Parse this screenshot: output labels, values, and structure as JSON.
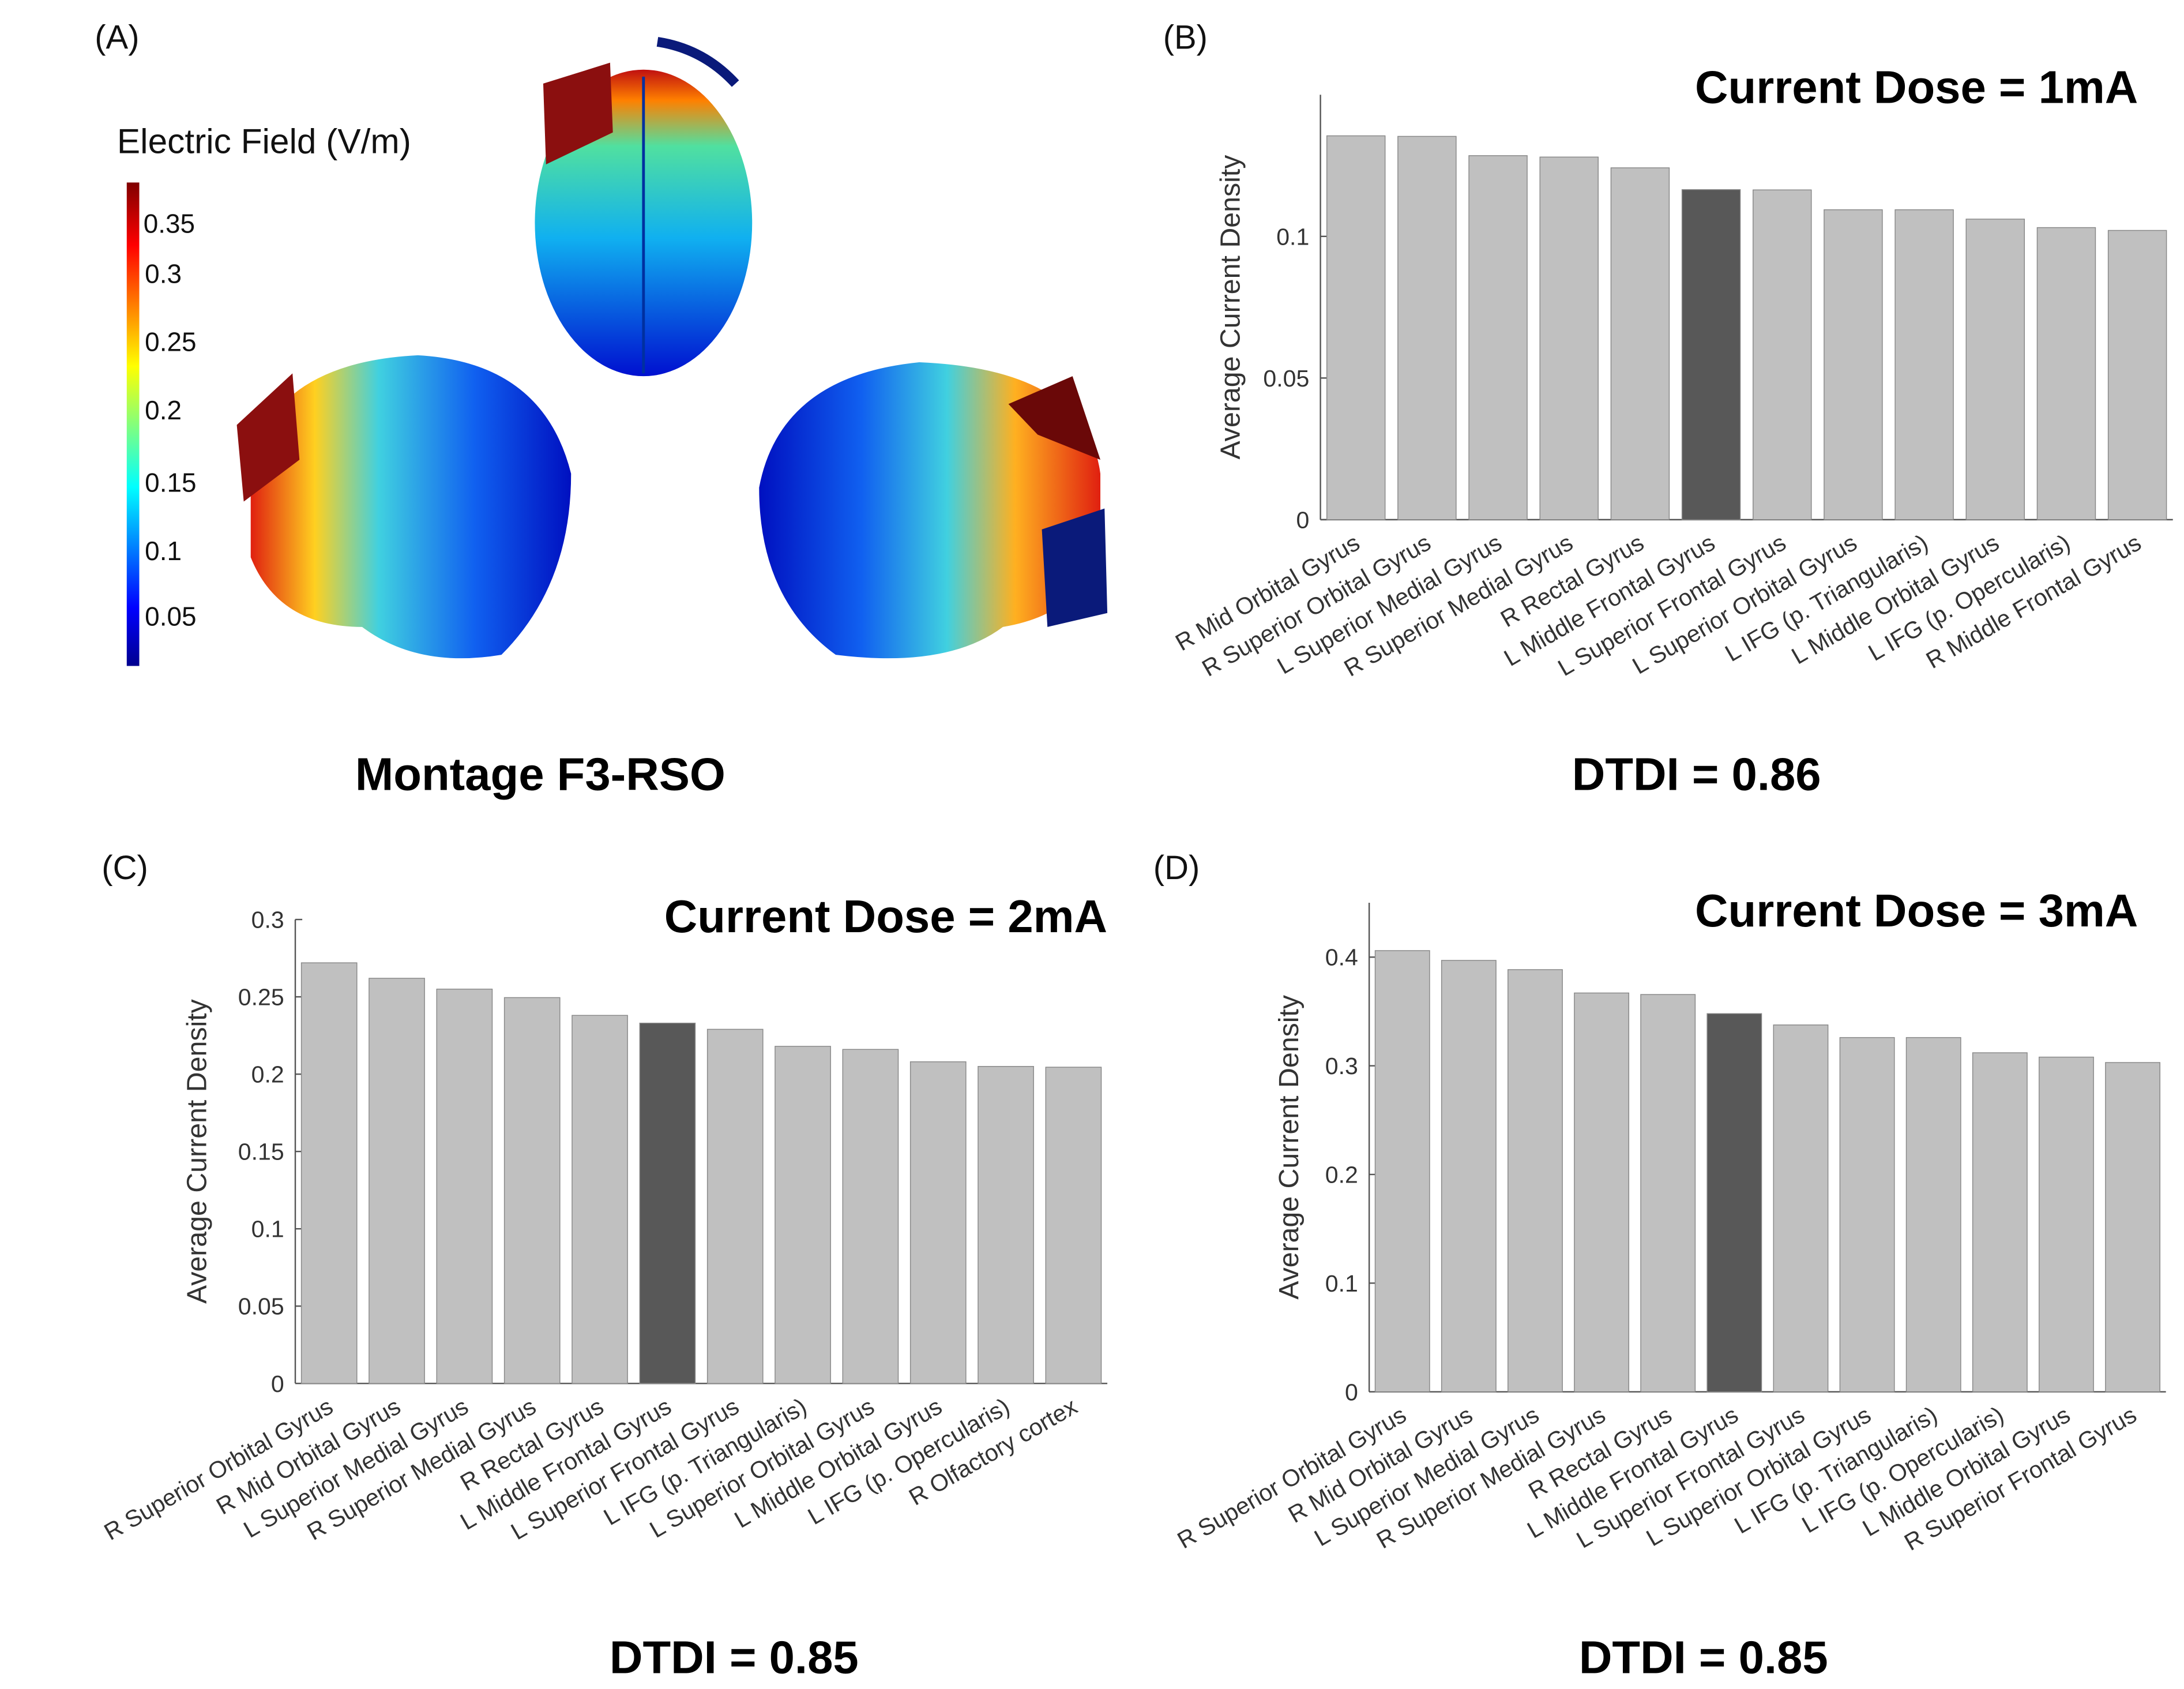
{
  "panel_labels": [
    "(A)",
    "(B)",
    "(C)",
    "(D)"
  ],
  "panel_a": {
    "colorbar_title": "Electric Field (V/m)",
    "colorbar_ticks": [
      "0.35",
      "0.3",
      "0.25",
      "0.2",
      "0.15",
      "0.1",
      "0.05"
    ],
    "montage_label": "Montage F3-RSO"
  },
  "colors": {
    "bar": "#c0c0c0",
    "highlight": "#585858"
  },
  "chart_data": [
    {
      "type": "bar",
      "title": "Current Dose = 1mA",
      "ylabel": "Average Current Density",
      "xlabel": "",
      "footer": "DTDI = 0.86",
      "ylim": [
        0,
        0.15
      ],
      "yticks": [
        0,
        0.05,
        0.1
      ],
      "ytick_labels": [
        "0",
        "0.05",
        "0.1"
      ],
      "highlight_index": 5,
      "categories": [
        "R Mid Orbital Gyrus",
        "R Superior Orbital Gyrus",
        "L Superior Medial Gyrus",
        "R Superior Medial Gyrus",
        "R Rectal Gyrus",
        "L Middle Frontal Gyrus",
        "L Superior Frontal Gyrus",
        "L Superior Orbital Gyrus",
        "L IFG (p. Triangularis)",
        "L Middle Orbital Gyrus",
        "L IFG (p. Opercularis)",
        "R Middle Frontal Gyrus"
      ],
      "values": [
        0.1355,
        0.1353,
        0.1285,
        0.128,
        0.1242,
        0.1165,
        0.1164,
        0.1094,
        0.1094,
        0.1061,
        0.1031,
        0.1021
      ]
    },
    {
      "type": "bar",
      "title": "Current Dose = 2mA",
      "ylabel": "Average Current Density",
      "xlabel": "",
      "footer": "DTDI = 0.85",
      "ylim": [
        0,
        0.3
      ],
      "yticks": [
        0,
        0.05,
        0.1,
        0.15,
        0.2,
        0.25,
        0.3
      ],
      "ytick_labels": [
        "0",
        "0.05",
        "0.1",
        "0.15",
        "0.2",
        "0.25",
        "0.3"
      ],
      "highlight_index": 5,
      "categories": [
        "R Superior Orbital Gyrus",
        "R Mid Orbital Gyrus",
        "L Superior Medial Gyrus",
        "R Superior Medial Gyrus",
        "R Rectal Gyrus",
        "L Middle Frontal Gyrus",
        "L Superior Frontal Gyrus",
        "L IFG (p. Triangularis)",
        "L Superior Orbital Gyrus",
        "L Middle Orbital Gyrus",
        "L IFG (p. Opercularis)",
        "R Olfactory cortex"
      ],
      "values": [
        0.272,
        0.262,
        0.255,
        0.2495,
        0.238,
        0.233,
        0.229,
        0.218,
        0.216,
        0.208,
        0.205,
        0.2045
      ]
    },
    {
      "type": "bar",
      "title": "Current Dose = 3mA",
      "ylabel": "Average Current Density",
      "xlabel": "",
      "footer": "DTDI = 0.85",
      "ylim": [
        0,
        0.45
      ],
      "yticks": [
        0,
        0.1,
        0.2,
        0.3,
        0.4
      ],
      "ytick_labels": [
        "0",
        "0.1",
        "0.2",
        "0.3",
        "0.4"
      ],
      "highlight_index": 5,
      "categories": [
        "R Superior Orbital Gyrus",
        "R Mid Orbital Gyrus",
        "L Superior Medial Gyrus",
        "R Superior Medial Gyrus",
        "R Rectal Gyrus",
        "L Middle Frontal Gyrus",
        "L Superior Frontal Gyrus",
        "L Superior Orbital Gyrus",
        "L IFG (p. Triangularis)",
        "L IFG (p. Opercularis)",
        "L Middle Orbital Gyrus",
        "R Superior Frontal Gyrus"
      ],
      "values": [
        0.406,
        0.397,
        0.3885,
        0.367,
        0.3656,
        0.348,
        0.3376,
        0.326,
        0.326,
        0.312,
        0.308,
        0.303
      ]
    }
  ]
}
